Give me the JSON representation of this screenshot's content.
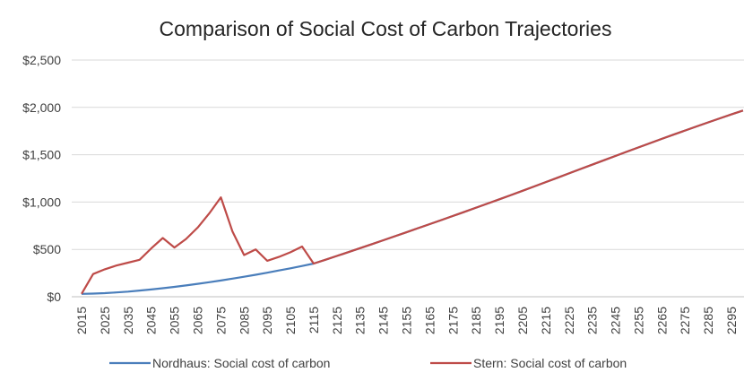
{
  "chart_data": {
    "type": "line",
    "title": "Comparison of Social Cost of Carbon Trajectories",
    "categories": [
      "2015",
      null,
      "2025",
      null,
      "2035",
      null,
      "2045",
      null,
      "2055",
      null,
      "2065",
      null,
      "2075",
      null,
      "2085",
      null,
      "2095",
      null,
      "2105",
      null,
      "2115",
      null,
      "2125",
      null,
      "2135",
      null,
      "2145",
      null,
      "2155",
      null,
      "2165",
      null,
      "2175",
      null,
      "2185",
      null,
      "2195",
      null,
      "2205",
      null,
      "2215",
      null,
      "2225",
      null,
      "2235",
      null,
      "2245",
      null,
      "2255",
      null,
      "2265",
      null,
      "2275",
      null,
      "2285",
      null,
      "2295",
      null
    ],
    "series": [
      {
        "name": "Nordhaus: Social cost of carbon",
        "color": "#4a7ebb",
        "values": [
          30,
          33,
          38,
          45,
          54,
          65,
          77,
          90,
          104,
          119,
          136,
          153,
          171,
          191,
          211,
          232,
          254,
          277,
          300,
          325,
          350,
          390,
          431,
          472,
          513,
          555,
          597,
          639,
          681,
          724,
          767,
          810,
          853,
          897,
          941,
          985,
          1029,
          1074,
          1119,
          1165,
          1211,
          1257,
          1303,
          1349,
          1395,
          1441,
          1487,
          1533,
          1578,
          1623,
          1668,
          1712,
          1756,
          1799,
          1842,
          1884,
          1926,
          1967
        ]
      },
      {
        "name": "Stern: Social cost of carbon",
        "color": "#be4b48",
        "values": [
          30,
          240,
          290,
          330,
          360,
          390,
          510,
          620,
          520,
          610,
          730,
          880,
          1050,
          690,
          440,
          500,
          380,
          420,
          470,
          530,
          350,
          390,
          431,
          472,
          513,
          555,
          597,
          639,
          681,
          724,
          767,
          810,
          853,
          897,
          941,
          985,
          1029,
          1074,
          1119,
          1165,
          1211,
          1257,
          1303,
          1349,
          1395,
          1441,
          1487,
          1533,
          1578,
          1623,
          1668,
          1712,
          1756,
          1799,
          1842,
          1884,
          1926,
          1967
        ]
      }
    ],
    "ylim": [
      0,
      2500
    ],
    "yticks": [
      {
        "value": 0,
        "label": "$0"
      },
      {
        "value": 500,
        "label": "$500"
      },
      {
        "value": 1000,
        "label": "$1,000"
      },
      {
        "value": 1500,
        "label": "$1,500"
      },
      {
        "value": 2000,
        "label": "$2,000"
      },
      {
        "value": 2500,
        "label": "$2,500"
      }
    ],
    "grid": true,
    "legend": "bottom"
  }
}
